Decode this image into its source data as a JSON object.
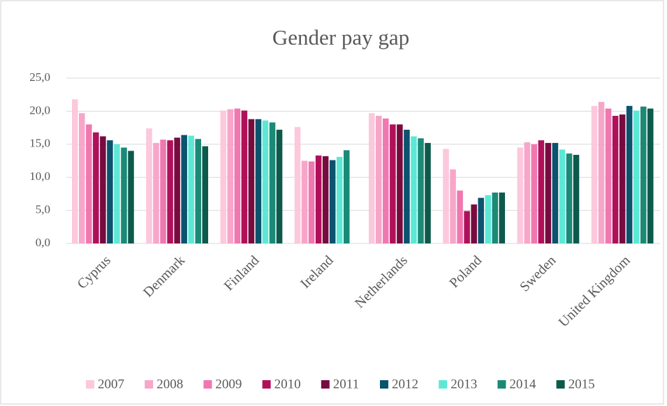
{
  "chart_data": {
    "type": "bar",
    "title": "Gender pay gap",
    "categories": [
      "Cyprus",
      "Denmark",
      "Finland",
      "Ireland",
      "Netherlands",
      "Poland",
      "Sweden",
      "United Kingdom"
    ],
    "series": [
      {
        "name": "2007",
        "color": "#fcc8dc",
        "values": [
          21.8,
          17.4,
          20.1,
          17.6,
          19.7,
          14.3,
          14.5,
          20.8
        ]
      },
      {
        "name": "2008",
        "color": "#f7a6c9",
        "values": [
          19.7,
          15.2,
          20.3,
          12.5,
          19.3,
          11.2,
          15.3,
          21.4
        ]
      },
      {
        "name": "2009",
        "color": "#ef78b0",
        "values": [
          18.0,
          15.7,
          20.4,
          12.4,
          18.9,
          8.0,
          15.0,
          20.4
        ]
      },
      {
        "name": "2010",
        "color": "#b0105a",
        "values": [
          16.8,
          15.6,
          20.1,
          13.3,
          18.0,
          4.9,
          15.6,
          19.3
        ]
      },
      {
        "name": "2011",
        "color": "#770b3f",
        "values": [
          16.2,
          16.0,
          18.8,
          13.2,
          18.0,
          5.9,
          15.2,
          19.5
        ]
      },
      {
        "name": "2012",
        "color": "#0b536e",
        "values": [
          15.6,
          16.4,
          18.8,
          12.6,
          17.2,
          6.9,
          15.2,
          20.8
        ]
      },
      {
        "name": "2013",
        "color": "#5de8d6",
        "values": [
          15.0,
          16.3,
          18.6,
          13.1,
          16.2,
          7.3,
          14.2,
          20.1
        ]
      },
      {
        "name": "2014",
        "color": "#1a8a76",
        "values": [
          14.5,
          15.8,
          18.3,
          14.1,
          15.9,
          7.7,
          13.6,
          20.7
        ]
      },
      {
        "name": "2015",
        "color": "#0d5a4c",
        "values": [
          14.0,
          14.7,
          17.2,
          null,
          15.2,
          7.7,
          13.4,
          20.4
        ]
      }
    ],
    "ylim": [
      0,
      25
    ],
    "yticks": [
      {
        "value": 0,
        "label": "0,0"
      },
      {
        "value": 5,
        "label": "5,0"
      },
      {
        "value": 10,
        "label": "10,0"
      },
      {
        "value": 15,
        "label": "15,0"
      },
      {
        "value": 20,
        "label": "20,0"
      },
      {
        "value": 25,
        "label": "25,0"
      }
    ],
    "grid": true,
    "legend": "bottom"
  }
}
